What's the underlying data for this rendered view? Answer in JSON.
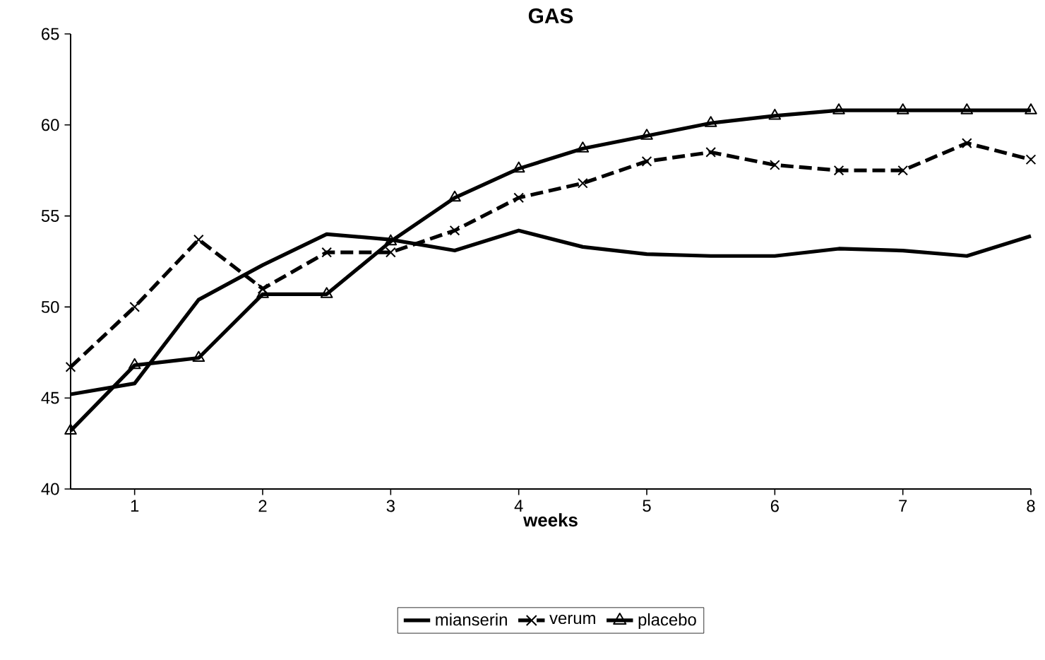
{
  "chart_data": {
    "type": "line",
    "title": "GAS",
    "xlabel": "weeks",
    "x": [
      0.5,
      1,
      1.5,
      2,
      2.5,
      3,
      3.5,
      4,
      4.5,
      5,
      5.5,
      6,
      6.5,
      7,
      7.5,
      8
    ],
    "series": [
      {
        "name": "mianserin",
        "color": "#000000",
        "marker": "none",
        "line_style": "solid",
        "values": [
          45.2,
          45.8,
          50.4,
          52.3,
          54.0,
          53.7,
          53.1,
          54.2,
          53.3,
          52.9,
          52.8,
          52.8,
          53.2,
          53.1,
          52.8,
          53.9
        ]
      },
      {
        "name": "verum",
        "color": "#000000",
        "marker": "cross",
        "line_style": "dashed",
        "values": [
          46.7,
          50.0,
          53.7,
          51.0,
          53.0,
          53.0,
          54.2,
          56.0,
          56.8,
          58.0,
          58.5,
          57.8,
          57.5,
          57.5,
          59.0,
          58.1
        ]
      },
      {
        "name": "placebo",
        "color": "#000000",
        "marker": "triangle",
        "line_style": "solid",
        "values": [
          43.2,
          46.8,
          47.2,
          50.7,
          50.7,
          53.6,
          56.0,
          57.6,
          58.7,
          59.4,
          60.1,
          60.5,
          60.8,
          60.8,
          60.8,
          60.8
        ]
      }
    ],
    "xlim": [
      0.5,
      8
    ],
    "ylim": [
      40,
      65
    ],
    "xticks": [
      1,
      2,
      3,
      4,
      5,
      6,
      7,
      8
    ],
    "yticks": [
      40,
      45,
      50,
      55,
      60,
      65
    ],
    "grid": false,
    "legend": "bottom"
  }
}
